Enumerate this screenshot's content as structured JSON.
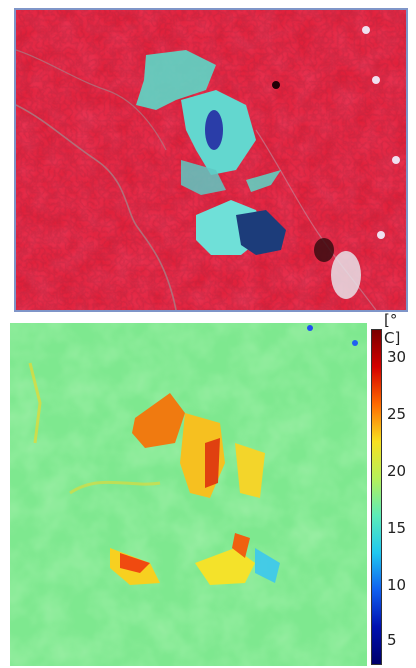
{
  "colorbar": {
    "unit": "[° C]",
    "ticks": [
      "30",
      "25",
      "20",
      "15",
      "10",
      "5"
    ],
    "colors": [
      "#7a0000",
      "#d40000",
      "#ff6a00",
      "#f8e020",
      "#b6f05a",
      "#5cecb8",
      "#20c8f0",
      "#1060f0",
      "#0010b0",
      "#00006a"
    ]
  },
  "top_image": {
    "icon": "false-color-satellite-image"
  },
  "bottom_image": {
    "icon": "land-surface-temperature-map"
  }
}
